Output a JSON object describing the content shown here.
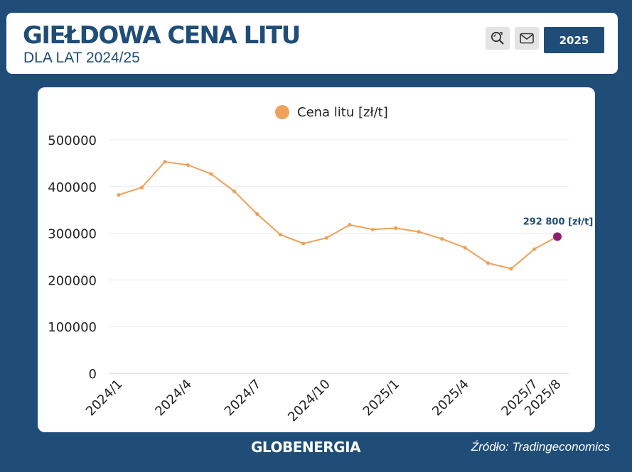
{
  "header": {
    "title": "GIEŁDOWA CENA LITU",
    "subtitle": "DLA LAT 2024/25",
    "year_button": "2025",
    "search_icon": "search-icon",
    "mail_icon": "mail-icon"
  },
  "colors": {
    "brand": "#1f4d78",
    "line": "#eda15a",
    "highlight": "#8e1d6e"
  },
  "chart_data": {
    "type": "line",
    "title": "",
    "legend": [
      "Cena litu [zł/t]"
    ],
    "legend_position": "top-center",
    "grid": true,
    "xlabel": "",
    "ylabel": "",
    "ylim": [
      0,
      500000
    ],
    "y_ticks": [
      "0",
      "100000",
      "200000",
      "300000",
      "400000",
      "500000"
    ],
    "x_tick_labels": [
      "2024/1",
      "2024/4",
      "2024/7",
      "2024/10",
      "2025/1",
      "2025/4",
      "2025/7",
      "2025/8"
    ],
    "x_tick_indices": [
      0,
      3,
      6,
      9,
      12,
      15,
      18,
      19
    ],
    "series": [
      {
        "name": "Cena litu [zł/t]",
        "values": [
          382000,
          398000,
          453000,
          446000,
          427000,
          390000,
          341000,
          297000,
          278000,
          290000,
          318000,
          308000,
          311000,
          303000,
          288000,
          269000,
          236000,
          224000,
          266000,
          292800
        ]
      }
    ],
    "annotation": {
      "index": 19,
      "label": "292 800 [zł/t]"
    }
  },
  "footer": {
    "logo": "GLOBENERGIA",
    "source": "Źródło: Tradingeconomics"
  }
}
